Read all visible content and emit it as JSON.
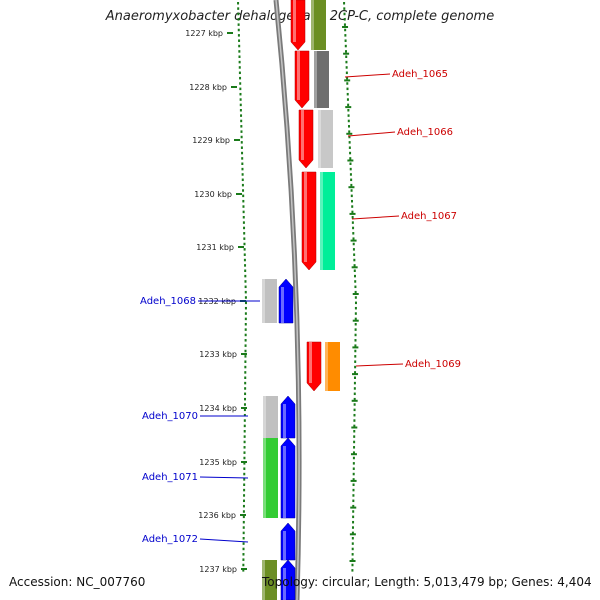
{
  "title": "Anaeromyxobacter dehalogenans 2CP-C, complete genome",
  "footer": {
    "accession": "Accession: NC_007760",
    "topology": "Topology: circular; Length: 5,013,479 bp; Genes: 4,404"
  },
  "colors": {
    "forward_label": "#cc0000",
    "reverse_label": "#0000cc",
    "tick": "#1a7a1a",
    "backbone": "#808080"
  },
  "ticks": [
    "1227 kbp",
    "1228 kbp",
    "1229 kbp",
    "1230 kbp",
    "1231 kbp",
    "1232 kbp",
    "1233 kbp",
    "1234 kbp",
    "1235 kbp",
    "1236 kbp",
    "1237 kbp"
  ],
  "genes_forward": [
    {
      "label": "",
      "cog_color": "#6b8e23"
    },
    {
      "label": "Adeh_1065",
      "cog_color": "#6e6e6e"
    },
    {
      "label": "Adeh_1066",
      "cog_color": "#c8c8c8"
    },
    {
      "label": "Adeh_1067",
      "cog_color": "#00ee99"
    },
    {
      "label": "Adeh_1069",
      "cog_color": "#ff8c00"
    }
  ],
  "genes_reverse": [
    {
      "label": "Adeh_1068",
      "cog_color": "#c0c0c0"
    },
    {
      "label": "Adeh_1070",
      "cog_color": "#c0c0c0"
    },
    {
      "label": "Adeh_1071",
      "cog_color": "#33cc33"
    },
    {
      "label": "Adeh_1072",
      "cog_color": ""
    },
    {
      "label": "",
      "cog_color": "#6b8e23"
    }
  ]
}
